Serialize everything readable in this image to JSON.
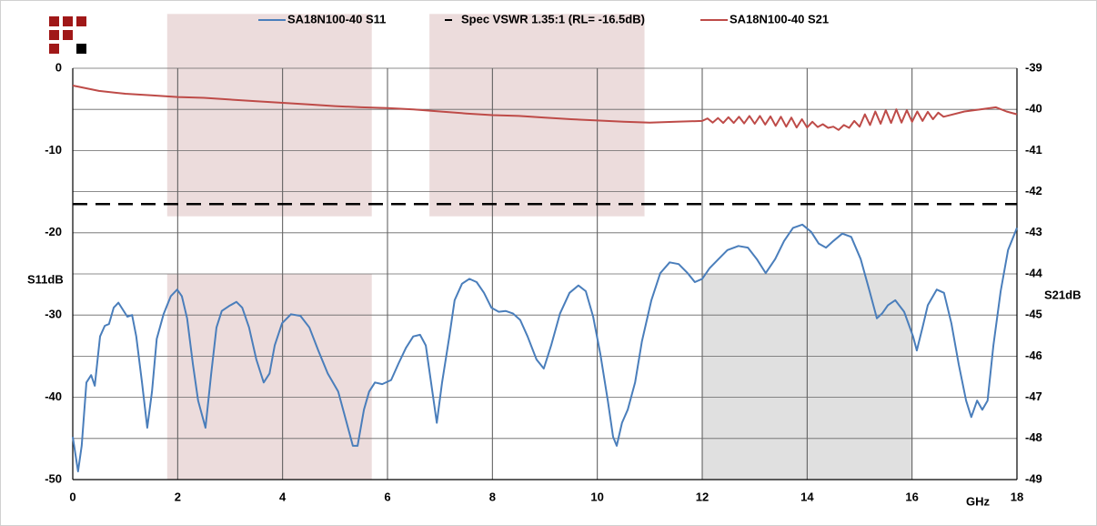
{
  "chart_data": {
    "type": "line",
    "x_label": "GHz",
    "y_label": "S11dB",
    "y2_label": "S21dB",
    "xlim": [
      0,
      18
    ],
    "xticks": [
      0,
      2,
      4,
      6,
      8,
      10,
      12,
      14,
      16,
      18
    ],
    "ylim": [
      -50,
      0
    ],
    "yticks": [
      0,
      -10,
      -20,
      -30,
      -40,
      -50
    ],
    "y2lim": [
      -49,
      -39
    ],
    "y2ticks": [
      -39,
      -40,
      -41,
      -42,
      -43,
      -44,
      -45,
      -46,
      -47,
      -48,
      -49
    ],
    "grid": true,
    "legend": "top",
    "shaded_regions": [
      {
        "xlim": [
          1.8,
          5.7
        ],
        "ylim": [
          -18,
          6.6
        ],
        "color": "#ecdcdc"
      },
      {
        "xlim": [
          6.8,
          10.9
        ],
        "ylim": [
          -18,
          6.6
        ],
        "color": "#ecdcdc"
      },
      {
        "xlim": [
          1.8,
          5.7
        ],
        "ylim": [
          -50,
          -25
        ],
        "color": "#ecdcdc"
      },
      {
        "xlim": [
          12,
          16
        ],
        "ylim": [
          -50,
          -25
        ],
        "color": "#e0e0e0"
      }
    ],
    "series": [
      {
        "name": "SA18N100-40 S11",
        "color": "#4a7ebb",
        "x": [
          0,
          0.1,
          0.17,
          0.26,
          0.35,
          0.42,
          0.52,
          0.61,
          0.69,
          0.78,
          0.87,
          0.95,
          1.04,
          1.13,
          1.21,
          1.32,
          1.42,
          1.51,
          1.6,
          1.73,
          1.87,
          1.99,
          2.08,
          2.18,
          2.29,
          2.39,
          2.53,
          2.64,
          2.74,
          2.84,
          2.98,
          3.12,
          3.23,
          3.36,
          3.5,
          3.64,
          3.75,
          3.85,
          3.99,
          4.16,
          4.34,
          4.51,
          4.68,
          4.86,
          5.06,
          5.2,
          5.34,
          5.43,
          5.55,
          5.65,
          5.76,
          5.9,
          6.07,
          6.21,
          6.35,
          6.49,
          6.62,
          6.73,
          6.83,
          6.94,
          7.04,
          7.18,
          7.28,
          7.42,
          7.56,
          7.7,
          7.84,
          7.98,
          8.12,
          8.25,
          8.39,
          8.53,
          8.67,
          8.84,
          8.98,
          9.12,
          9.29,
          9.47,
          9.64,
          9.78,
          9.92,
          10.06,
          10.2,
          10.3,
          10.37,
          10.47,
          10.58,
          10.72,
          10.85,
          11.03,
          11.2,
          11.38,
          11.55,
          11.72,
          11.86,
          12,
          12.14,
          12.31,
          12.48,
          12.69,
          12.87,
          13.04,
          13.21,
          13.39,
          13.56,
          13.73,
          13.91,
          14.08,
          14.22,
          14.36,
          14.5,
          14.67,
          14.84,
          15.02,
          15.19,
          15.33,
          15.43,
          15.54,
          15.68,
          15.85,
          16.02,
          16.09,
          16.2,
          16.3,
          16.47,
          16.61,
          16.75,
          16.89,
          17.03,
          17.13,
          17.24,
          17.34,
          17.44,
          17.55,
          17.69,
          17.83,
          18
        ],
        "values": [
          -44.8,
          -49.0,
          -45.9,
          -38.2,
          -37.3,
          -38.6,
          -32.6,
          -31.3,
          -31.1,
          -29.1,
          -28.5,
          -29.3,
          -30.2,
          -30.0,
          -32.6,
          -38.2,
          -43.7,
          -39.3,
          -32.9,
          -29.9,
          -27.7,
          -26.9,
          -27.7,
          -30.4,
          -36.0,
          -40.4,
          -43.7,
          -37.1,
          -31.5,
          -29.5,
          -28.9,
          -28.4,
          -29.1,
          -31.5,
          -35.4,
          -38.2,
          -37.1,
          -33.7,
          -31.0,
          -29.9,
          -30.1,
          -31.5,
          -34.3,
          -37.1,
          -39.3,
          -42.6,
          -45.9,
          -45.9,
          -41.5,
          -39.3,
          -38.2,
          -38.4,
          -37.9,
          -35.9,
          -34.0,
          -32.6,
          -32.4,
          -33.7,
          -38.2,
          -43.1,
          -38.2,
          -32.6,
          -28.2,
          -26.2,
          -25.6,
          -26.0,
          -27.3,
          -29.1,
          -29.6,
          -29.5,
          -29.8,
          -30.6,
          -32.6,
          -35.4,
          -36.5,
          -33.7,
          -29.8,
          -27.3,
          -26.4,
          -27.1,
          -30.2,
          -34.8,
          -40.4,
          -44.8,
          -45.9,
          -43.1,
          -41.5,
          -38.2,
          -33.2,
          -28.2,
          -24.9,
          -23.6,
          -23.8,
          -24.9,
          -26.0,
          -25.6,
          -24.3,
          -23.2,
          -22.1,
          -21.6,
          -21.8,
          -23.2,
          -24.9,
          -23.2,
          -21.0,
          -19.4,
          -19.0,
          -19.9,
          -21.3,
          -21.8,
          -21.0,
          -20.1,
          -20.5,
          -23.2,
          -27.1,
          -30.4,
          -29.8,
          -28.8,
          -28.2,
          -29.6,
          -32.6,
          -34.3,
          -31.5,
          -28.8,
          -26.9,
          -27.3,
          -31.0,
          -36.0,
          -40.4,
          -42.4,
          -40.4,
          -41.5,
          -40.4,
          -33.7,
          -27.1,
          -22.1,
          -19.4
        ]
      },
      {
        "name": "Spec VSWR 1.35:1 (RL= -16.5dB)",
        "color": "#000000",
        "dash": true,
        "x": [
          0,
          18
        ],
        "values": [
          -16.5,
          -16.5
        ]
      },
      {
        "name": "SA18N100-40 S21",
        "color": "#be4b48",
        "axis": "y2",
        "x": [
          0,
          0.5,
          1,
          1.5,
          2,
          2.5,
          3,
          3.5,
          4,
          4.5,
          5,
          5.5,
          6,
          6.5,
          7,
          7.5,
          8,
          8.5,
          9,
          9.5,
          10,
          10.5,
          11,
          11.5,
          12,
          12.1,
          12.2,
          12.3,
          12.4,
          12.5,
          12.6,
          12.7,
          12.8,
          12.9,
          13,
          13.1,
          13.2,
          13.3,
          13.4,
          13.5,
          13.6,
          13.7,
          13.8,
          13.9,
          14,
          14.1,
          14.2,
          14.3,
          14.4,
          14.5,
          14.6,
          14.7,
          14.8,
          14.9,
          15,
          15.1,
          15.2,
          15.3,
          15.4,
          15.5,
          15.6,
          15.7,
          15.8,
          15.9,
          16,
          16.1,
          16.2,
          16.3,
          16.4,
          16.5,
          16.6,
          17,
          17.3,
          17.6,
          17.8,
          18
        ],
        "values": [
          -39.42,
          -39.55,
          -39.62,
          -39.66,
          -39.7,
          -39.72,
          -39.76,
          -39.8,
          -39.84,
          -39.88,
          -39.92,
          -39.95,
          -39.97,
          -40.0,
          -40.05,
          -40.1,
          -40.14,
          -40.16,
          -40.2,
          -40.24,
          -40.27,
          -40.3,
          -40.32,
          -40.3,
          -40.28,
          -40.22,
          -40.32,
          -40.21,
          -40.33,
          -40.19,
          -40.33,
          -40.18,
          -40.34,
          -40.16,
          -40.35,
          -40.16,
          -40.37,
          -40.17,
          -40.4,
          -40.18,
          -40.42,
          -40.2,
          -40.44,
          -40.24,
          -40.44,
          -40.3,
          -40.43,
          -40.36,
          -40.45,
          -40.42,
          -40.5,
          -40.38,
          -40.45,
          -40.28,
          -40.42,
          -40.12,
          -40.38,
          -40.05,
          -40.35,
          -40.02,
          -40.33,
          -40.0,
          -40.32,
          -40.02,
          -40.3,
          -40.05,
          -40.28,
          -40.06,
          -40.24,
          -40.08,
          -40.18,
          -40.05,
          -40.0,
          -39.95,
          -40.05,
          -40.12
        ]
      }
    ]
  }
}
